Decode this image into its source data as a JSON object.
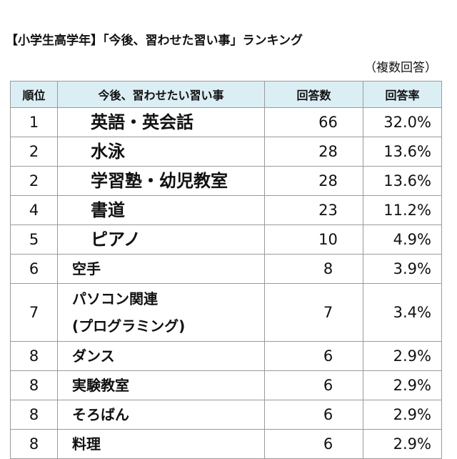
{
  "title": "【小学生高学年】「今後、習わせた習い事」ランキング",
  "note": "（複数回答）",
  "chart_data": {
    "type": "table",
    "columns": [
      "順位",
      "今後、習わせたい習い事",
      "回答数",
      "回答率"
    ],
    "rows": [
      {
        "rank": "1",
        "item": "英語・英会話",
        "count": 66,
        "rate": "32.0%",
        "style": "big"
      },
      {
        "rank": "2",
        "item": "水泳",
        "count": 28,
        "rate": "13.6%",
        "style": "big"
      },
      {
        "rank": "2",
        "item": "学習塾・幼児教室",
        "count": 28,
        "rate": "13.6%",
        "style": "big"
      },
      {
        "rank": "4",
        "item": "書道",
        "count": 23,
        "rate": "11.2%",
        "style": "big"
      },
      {
        "rank": "5",
        "item": "ピアノ",
        "count": 10,
        "rate": "4.9%",
        "style": "big"
      },
      {
        "rank": "6",
        "item": "空手",
        "count": 8,
        "rate": "3.9%",
        "style": "small"
      },
      {
        "rank": "7",
        "item": "パソコン関連\n(プログラミング)",
        "count": 7,
        "rate": "3.4%",
        "style": "small",
        "tall": true
      },
      {
        "rank": "8",
        "item": "ダンス",
        "count": 6,
        "rate": "2.9%",
        "style": "small"
      },
      {
        "rank": "8",
        "item": "実験教室",
        "count": 6,
        "rate": "2.9%",
        "style": "small"
      },
      {
        "rank": "8",
        "item": "そろばん",
        "count": 6,
        "rate": "2.9%",
        "style": "small"
      },
      {
        "rank": "8",
        "item": "料理",
        "count": 6,
        "rate": "2.9%",
        "style": "small"
      }
    ]
  }
}
